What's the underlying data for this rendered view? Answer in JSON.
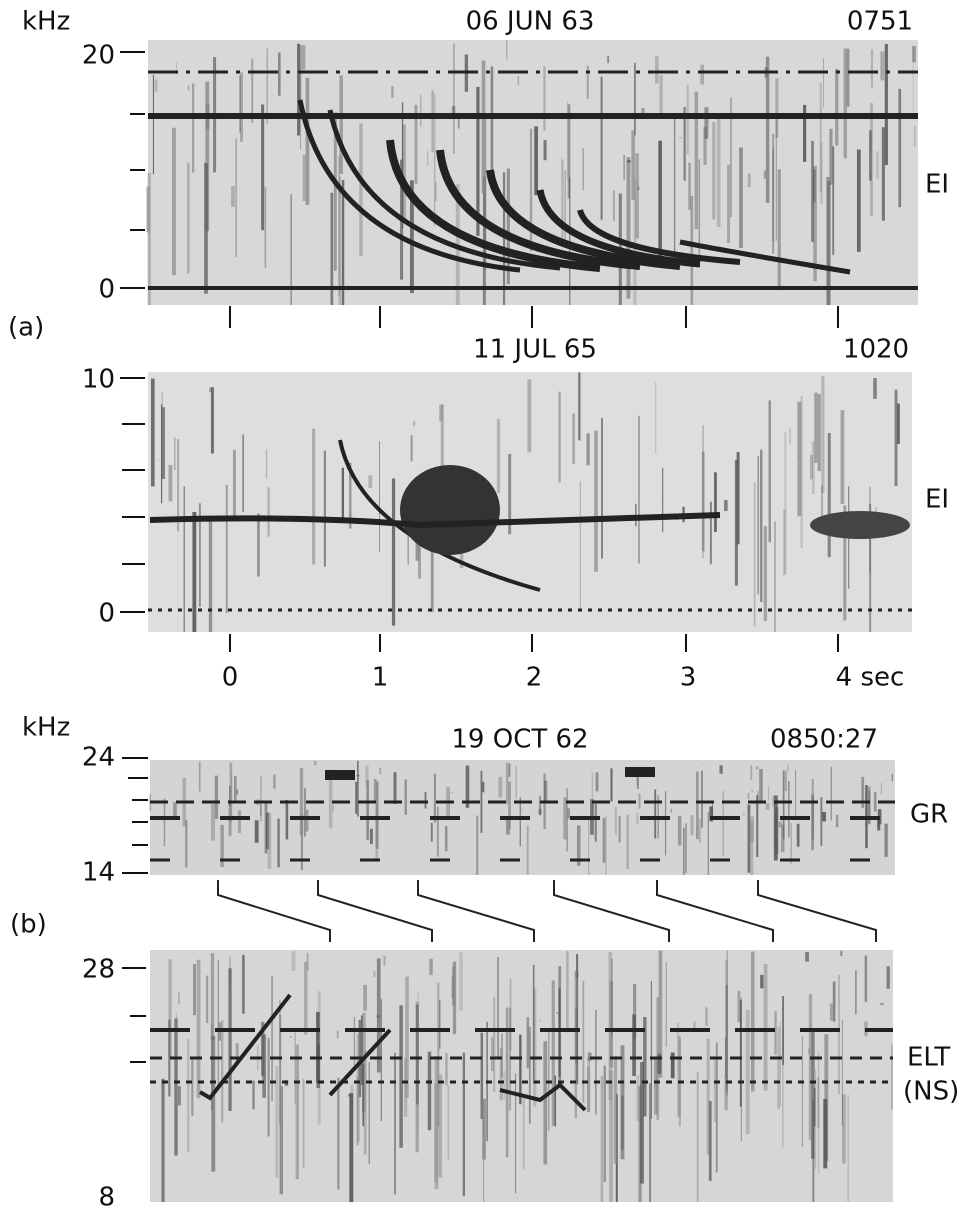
{
  "panel_a": {
    "label": "(a)",
    "unit": "kHz",
    "spectrogram_1": {
      "date": "06 JUN 63",
      "time": "0751",
      "station": "EI",
      "y_labels": [
        "20",
        "0"
      ]
    },
    "spectrogram_2": {
      "date": "11 JUL 65",
      "time": "1020",
      "station": "EI",
      "y_labels": [
        "10",
        "0"
      ]
    },
    "x_labels": [
      "0",
      "1",
      "2",
      "3",
      "4 sec"
    ]
  },
  "panel_b": {
    "label": "(b)",
    "unit": "kHz",
    "spectrogram_1": {
      "date": "19 OCT 62",
      "time": "0850:27",
      "station": "GR",
      "y_labels": [
        "24",
        "14"
      ]
    },
    "spectrogram_2": {
      "station": [
        "ELT",
        "(NS)"
      ],
      "y_labels": [
        "28",
        "8"
      ]
    }
  }
}
